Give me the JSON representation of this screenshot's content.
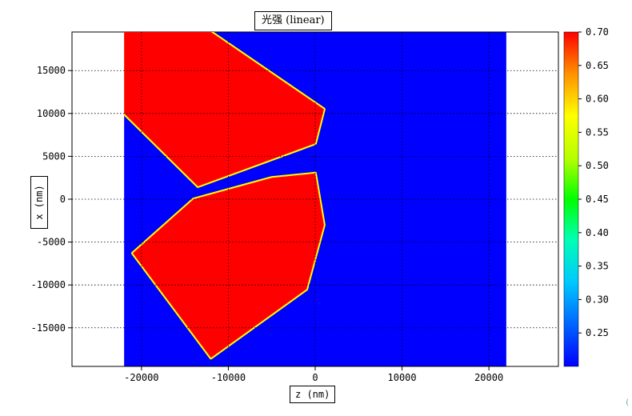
{
  "chart_data": {
    "type": "heatmap",
    "title": "光强 (linear)",
    "xlabel": "z (nm)",
    "ylabel": "x (nm)",
    "xlim": [
      -28000,
      28000
    ],
    "ylim": [
      -19500,
      19500
    ],
    "data_xlim": [
      -22000,
      22000
    ],
    "x_ticks": [
      -20000,
      -10000,
      0,
      10000,
      20000
    ],
    "x_tick_labels": [
      "-20000",
      "-10000",
      "0",
      "10000",
      "20000"
    ],
    "y_ticks": [
      15000,
      10000,
      5000,
      0,
      -5000,
      -10000,
      -15000
    ],
    "y_tick_labels": [
      "15000",
      "10000",
      "5000",
      "0",
      "-5000",
      "-10000",
      "-15000"
    ],
    "grid": true,
    "colorbar": {
      "min": 0.2,
      "max": 0.7,
      "ticks": [
        0.7,
        0.65,
        0.6,
        0.55,
        0.5,
        0.45,
        0.4,
        0.35,
        0.3,
        0.25
      ],
      "tick_labels": [
        "0.70",
        "0.65",
        "0.60",
        "0.55",
        "0.50",
        "0.45",
        "0.40",
        "0.35",
        "0.30",
        "0.25"
      ],
      "colormap": "jet"
    },
    "background_value": 0.2,
    "saturated_value": 0.7,
    "regions": [
      {
        "name": "upper incident beam",
        "value": 0.7,
        "polygon": [
          [
            -22000,
            19500
          ],
          [
            -12000,
            19500
          ],
          [
            1000,
            10500
          ],
          [
            0,
            6500
          ],
          [
            -13500,
            1500
          ],
          [
            -22000,
            10000
          ]
        ]
      },
      {
        "name": "lower incident beam",
        "value": 0.7,
        "polygon": [
          [
            -21000,
            -6300
          ],
          [
            -14000,
            0
          ],
          [
            -5000,
            2500
          ],
          [
            0,
            3000
          ],
          [
            1000,
            -3000
          ],
          [
            -1000,
            -10500
          ],
          [
            -12000,
            -18500
          ]
        ]
      }
    ]
  },
  "colors": {
    "background": "#0000ff",
    "saturated": "#ff0000",
    "axes_line": "#000000",
    "grid": "#000000"
  }
}
